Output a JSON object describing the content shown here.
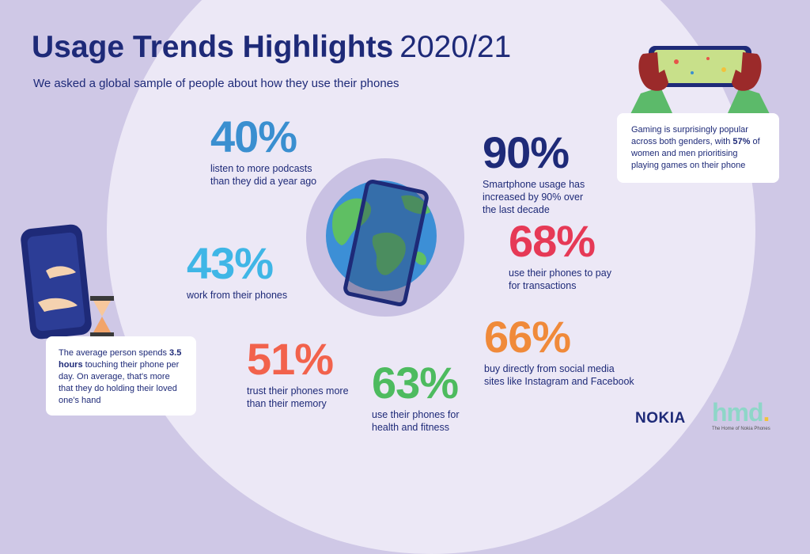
{
  "title": {
    "bold": "Usage Trends Highlights",
    "year": "2020/21"
  },
  "subtitle": "We asked a global sample of people about how they use their phones",
  "stats": [
    {
      "value": "40%",
      "desc_lines": [
        "listen to more podcasts",
        "than they did a year ago"
      ],
      "color": "#3a8fd0"
    },
    {
      "value": "90%",
      "desc_lines": [
        "Smartphone usage has",
        "increased by 90% over",
        "the last decade"
      ],
      "color": "#1e2a78"
    },
    {
      "value": "68%",
      "desc_lines": [
        "use their phones to pay",
        "for transactions"
      ],
      "color": "#e63956"
    },
    {
      "value": "43%",
      "desc_lines": [
        "work from their phones"
      ],
      "color": "#3fb6e6"
    },
    {
      "value": "51%",
      "desc_lines": [
        "trust their phones more",
        "than their memory"
      ],
      "color": "#f2624c"
    },
    {
      "value": "63%",
      "desc_lines": [
        "use their phones for",
        "health and fitness"
      ],
      "color": "#4dbb5f"
    },
    {
      "value": "66%",
      "desc_lines": [
        "buy directly from social media",
        "sites like Instagram and Facebook"
      ],
      "color": "#f08a3a"
    }
  ],
  "gaming_card": {
    "text_before": "Gaming is surprisingly popular across both genders, with ",
    "highlight": "57%",
    "text_after": " of women and men prioritising playing games on their phone"
  },
  "touch_card": {
    "text_before": "The average person spends ",
    "highlight": "3.5 hours",
    "text_after": " touching their phone per day. On average, that's more that they do holding their loved one's hand"
  },
  "brands": {
    "nokia": "NOKIA",
    "hmd": "hmd",
    "hmd_dot": ".",
    "hmd_tagline": "The Home of Nokia Phones"
  },
  "icons": [
    "globe-phone-illustration",
    "gaming-hands-illustration",
    "hugging-phone-illustration",
    "hourglass-icon"
  ]
}
